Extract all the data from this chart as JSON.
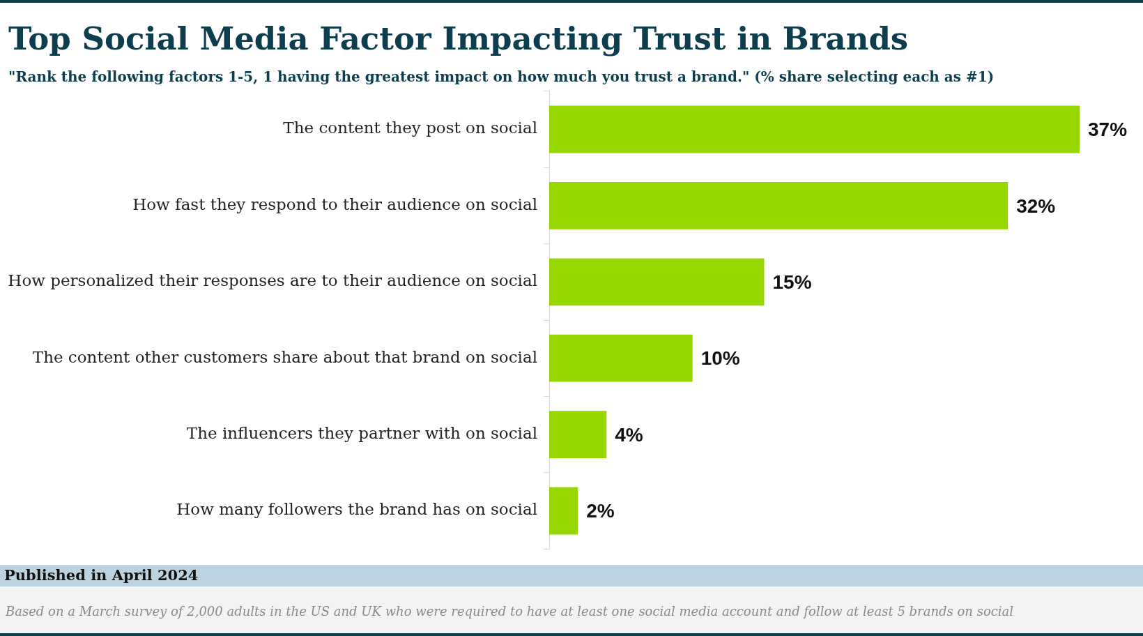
{
  "chart_data": {
    "type": "bar",
    "orientation": "horizontal",
    "title": "Top Social Media Factor Impacting Trust in Brands",
    "subtitle": "\"Rank the following factors 1-5, 1 having the greatest impact on how much you trust a brand.\" (% share selecting each as #1)",
    "categories": [
      "The content they post on social",
      "How fast they respond to their audience on social",
      "How personalized their responses are to their audience on social",
      "The content other customers share about that brand on social",
      "The influencers they partner with on social",
      "How many followers the brand has on social"
    ],
    "values": [
      37,
      32,
      15,
      10,
      4,
      2
    ],
    "value_labels": [
      "37%",
      "32%",
      "15%",
      "10%",
      "4%",
      "2%"
    ],
    "color": "#97d700",
    "tick_labels": "y",
    "annotations": [
      "Published in April 2024",
      "Based on a March survey of 2,000 adults in the US and UK who were required to have at least one social media account and follow at least 5 brands on social"
    ]
  }
}
